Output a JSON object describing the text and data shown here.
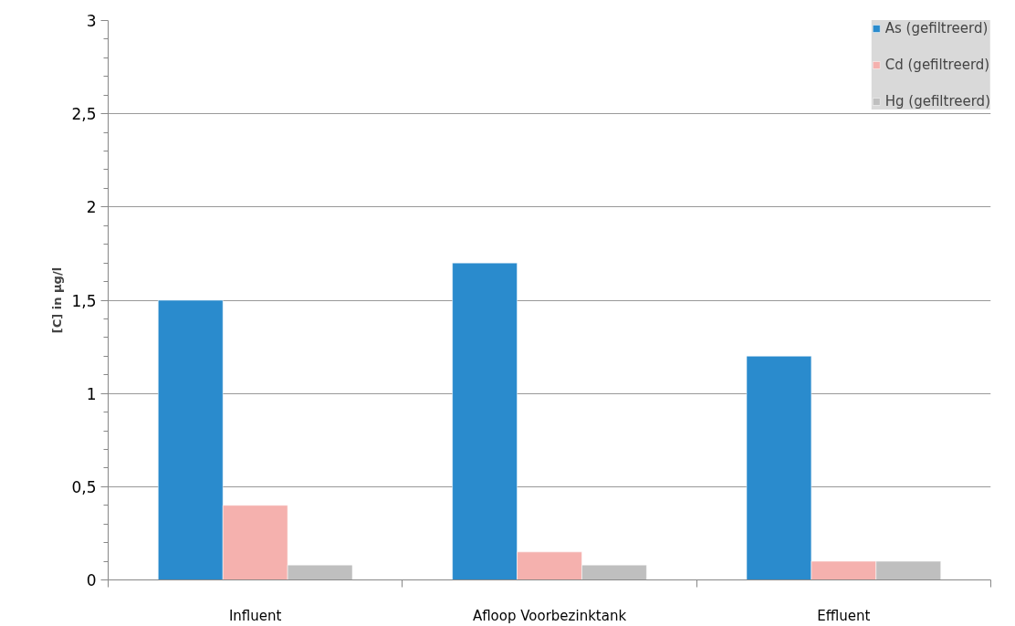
{
  "chart_data": {
    "type": "bar",
    "ylabel": "[C] in µg/l",
    "categories": [
      "Influent",
      "Afloop Voorbezinktank",
      "Effluent"
    ],
    "series": [
      {
        "name": "As (gefiltreerd)",
        "color": "#2a8bcd",
        "values": [
          1.5,
          1.7,
          1.2
        ]
      },
      {
        "name": "Cd (gefiltreerd)",
        "color": "#f5b1ae",
        "values": [
          0.4,
          0.15,
          0.1
        ]
      },
      {
        "name": "Hg (gefiltreerd)",
        "color": "#bfbfbf",
        "values": [
          0.08,
          0.08,
          0.1
        ]
      }
    ],
    "ylim": [
      0,
      3
    ],
    "yticks": [
      0,
      {
        "value": 0.1,
        "label": null
      },
      {
        "value": 0.2,
        "label": null
      },
      {
        "value": 0.3,
        "label": null
      },
      {
        "value": 0.4,
        "label": null
      },
      {
        "value": 0.5,
        "label": "0,5"
      },
      {
        "value": 0.6,
        "label": null
      },
      {
        "value": 0.7,
        "label": null
      },
      {
        "value": 0.8,
        "label": null
      },
      {
        "value": 0.9,
        "label": null
      },
      1,
      {
        "value": 1.1,
        "label": null
      },
      {
        "value": 1.2,
        "label": null
      },
      {
        "value": 1.3,
        "label": null
      },
      {
        "value": 1.4,
        "label": null
      },
      {
        "value": 1.5,
        "label": "1,5"
      },
      {
        "value": 1.6,
        "label": null
      },
      {
        "value": 1.7,
        "label": null
      },
      {
        "value": 1.8,
        "label": null
      },
      {
        "value": 1.9,
        "label": null
      },
      2,
      {
        "value": 2.1,
        "label": null
      },
      {
        "value": 2.2,
        "label": null
      },
      {
        "value": 2.3,
        "label": null
      },
      {
        "value": 2.4,
        "label": null
      },
      {
        "value": 2.5,
        "label": "2,5"
      },
      {
        "value": 2.6,
        "label": null
      },
      {
        "value": 2.7,
        "label": null
      },
      {
        "value": 2.8,
        "label": null
      },
      {
        "value": 2.9,
        "label": null
      },
      3
    ],
    "grid": "y",
    "legend": "top right"
  }
}
